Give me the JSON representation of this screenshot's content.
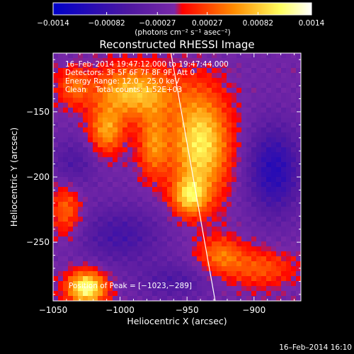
{
  "chart_data": {
    "type": "heatmap",
    "title": "Reconstructed RHESSI Image",
    "xlabel": "Heliocentric X (arcsec)",
    "ylabel": "Heliocentric Y (arcsec)",
    "xlim": [
      -1050,
      -865
    ],
    "ylim": [
      -295,
      -105
    ],
    "x_ticks": [
      -1050,
      -1000,
      -950,
      -900
    ],
    "x_tick_labels": [
      "−1050",
      "−1000",
      "−950",
      "−900"
    ],
    "y_ticks": [
      -150,
      -200,
      -250
    ],
    "y_tick_labels": [
      "−150",
      "−200",
      "−250"
    ],
    "colorbar": {
      "range": [
        -0.0014,
        0.0014
      ],
      "ticks": [
        -0.0014,
        -0.00082,
        -0.00027,
        0.00027,
        0.00082,
        0.0014
      ],
      "tick_labels": [
        "−0.0014",
        "−0.00082",
        "−0.00027",
        "0.00027",
        "0.00082",
        "0.0014"
      ],
      "unit_label": "(photons cm⁻² s⁻¹ asec⁻²)",
      "colors": [
        "#0000c8",
        "#5018a0",
        "#7828a8",
        "#ff0000",
        "#ff8c00",
        "#ffff60",
        "#ffffff"
      ]
    },
    "annotations": [
      "16–Feb–2014 19:47:12.000 to 19:47:44.000",
      "Detectors: 3F 5F 6F 7F 8F 9F, Att 0",
      "Energy Range: 12.0 – 25.0 keV",
      "Clean    Total counts: 1.52E+03"
    ],
    "peak_label": "Position of Peak = [−1023,−289]",
    "peak_position": [
      -1023,
      -289
    ],
    "limb_line": [
      [
        -962,
        -105
      ],
      [
        -929,
        -295
      ]
    ],
    "hot_regions": [
      {
        "x": -1025,
        "y": -285,
        "sx": 10,
        "sy": 9,
        "v": 0.0014
      },
      {
        "x": -940,
        "y": -175,
        "sx": 15,
        "sy": 28,
        "v": 0.0012
      },
      {
        "x": -948,
        "y": -215,
        "sx": 9,
        "sy": 10,
        "v": 0.0009
      },
      {
        "x": -990,
        "y": -135,
        "sx": 22,
        "sy": 14,
        "v": 0.001
      },
      {
        "x": -1010,
        "y": -165,
        "sx": 9,
        "sy": 12,
        "v": 0.0008
      },
      {
        "x": -975,
        "y": -175,
        "sx": 8,
        "sy": 18,
        "v": 0.0007
      },
      {
        "x": -1040,
        "y": -225,
        "sx": 8,
        "sy": 14,
        "v": 0.0006
      },
      {
        "x": -925,
        "y": -260,
        "sx": 12,
        "sy": 10,
        "v": 0.0006
      },
      {
        "x": -895,
        "y": -270,
        "sx": 18,
        "sy": 10,
        "v": 0.0005
      },
      {
        "x": -1035,
        "y": -130,
        "sx": 8,
        "sy": 10,
        "v": 0.0005
      }
    ],
    "cold_regions": [
      {
        "x": -885,
        "y": -195,
        "sx": 14,
        "sy": 24,
        "v": -0.0008
      },
      {
        "x": -1000,
        "y": -245,
        "sx": 22,
        "sy": 16,
        "v": -0.0005
      },
      {
        "x": -1035,
        "y": -190,
        "sx": 12,
        "sy": 14,
        "v": -0.0004
      },
      {
        "x": -960,
        "y": -280,
        "sx": 18,
        "sy": 10,
        "v": -0.0004
      }
    ]
  },
  "footer_timestamp": "16–Feb–2014 16:10"
}
